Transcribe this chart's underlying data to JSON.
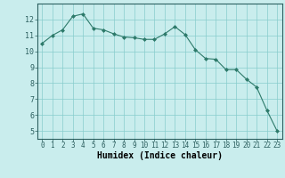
{
  "x": [
    0,
    1,
    2,
    3,
    4,
    5,
    6,
    7,
    8,
    9,
    10,
    11,
    12,
    13,
    14,
    15,
    16,
    17,
    18,
    19,
    20,
    21,
    22,
    23
  ],
  "y": [
    10.5,
    11.0,
    11.35,
    12.2,
    12.35,
    11.45,
    11.35,
    11.1,
    10.9,
    10.85,
    10.75,
    10.75,
    11.1,
    11.55,
    11.05,
    10.1,
    9.55,
    9.5,
    8.85,
    8.85,
    8.25,
    7.75,
    6.3,
    5.0
  ],
  "xlabel": "Humidex (Indice chaleur)",
  "bg_color": "#c9eded",
  "grid_color": "#88cccc",
  "line_color": "#2d7a6a",
  "marker_color": "#2d7a6a",
  "xlim": [
    -0.5,
    23.5
  ],
  "ylim": [
    4.5,
    13.0
  ],
  "yticks": [
    5,
    6,
    7,
    8,
    9,
    10,
    11,
    12
  ],
  "xticks": [
    0,
    1,
    2,
    3,
    4,
    5,
    6,
    7,
    8,
    9,
    10,
    11,
    12,
    13,
    14,
    15,
    16,
    17,
    18,
    19,
    20,
    21,
    22,
    23
  ],
  "tick_fontsize": 5.5,
  "xlabel_fontsize": 7.0,
  "spine_color": "#2d6060"
}
